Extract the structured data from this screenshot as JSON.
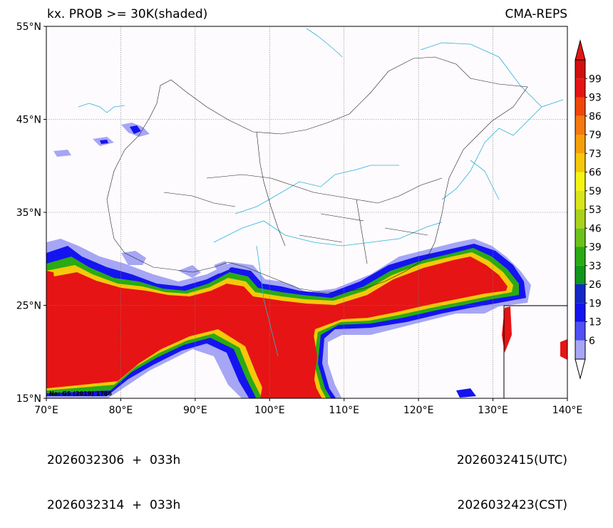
{
  "header": {
    "title_left": "kx. PROB >= 30K(shaded)",
    "title_right": "CMA-REPS"
  },
  "footer": {
    "left_line1": "2026032306  +  033h",
    "left_line2": "2026032314  +  033h",
    "right_line1": "2026032415(UTC)",
    "right_line2": "2026032423(CST)"
  },
  "watermark": "No: GS (2019) 1786",
  "axes": {
    "lon_min": 70,
    "lon_max": 140,
    "lat_min": 15,
    "lat_max": 55,
    "lon_ticks": [
      {
        "value": 70,
        "label": "70°E"
      },
      {
        "value": 80,
        "label": "80°E"
      },
      {
        "value": 90,
        "label": "90°E"
      },
      {
        "value": 100,
        "label": "100°E"
      },
      {
        "value": 110,
        "label": "110°E"
      },
      {
        "value": 120,
        "label": "120°E"
      },
      {
        "value": 130,
        "label": "130°E"
      },
      {
        "value": 140,
        "label": "140°E"
      }
    ],
    "lat_ticks": [
      {
        "value": 15,
        "label": "15°N"
      },
      {
        "value": 25,
        "label": "25°N"
      },
      {
        "value": 35,
        "label": "35°N"
      },
      {
        "value": 45,
        "label": "45°N"
      },
      {
        "value": 55,
        "label": "55°N"
      }
    ]
  },
  "colorbar": {
    "labels": [
      "6",
      "13",
      "19",
      "26",
      "33",
      "39",
      "46",
      "53",
      "59",
      "66",
      "73",
      "79",
      "86",
      "93",
      "99"
    ],
    "colors": [
      "#a6a6f5",
      "#5050f5",
      "#1414f0",
      "#1428c8",
      "#10961e",
      "#2aaa14",
      "#6cc21a",
      "#aad21a",
      "#d8e61a",
      "#f5f514",
      "#f5c80a",
      "#f5a00a",
      "#f57810",
      "#f0460a",
      "#e61414",
      "#d20f0f"
    ],
    "under_color": "#ffffff",
    "over_color": "#e61414"
  },
  "inset_box": {
    "lon_min": 131,
    "lon_max": 140,
    "lat_min": 15,
    "lat_max": 25
  },
  "colors": {
    "background": "#fdfbfe",
    "border": "#000000",
    "grid": "#808080",
    "rivers": "#30b0d8",
    "provinces": "#202020"
  }
}
